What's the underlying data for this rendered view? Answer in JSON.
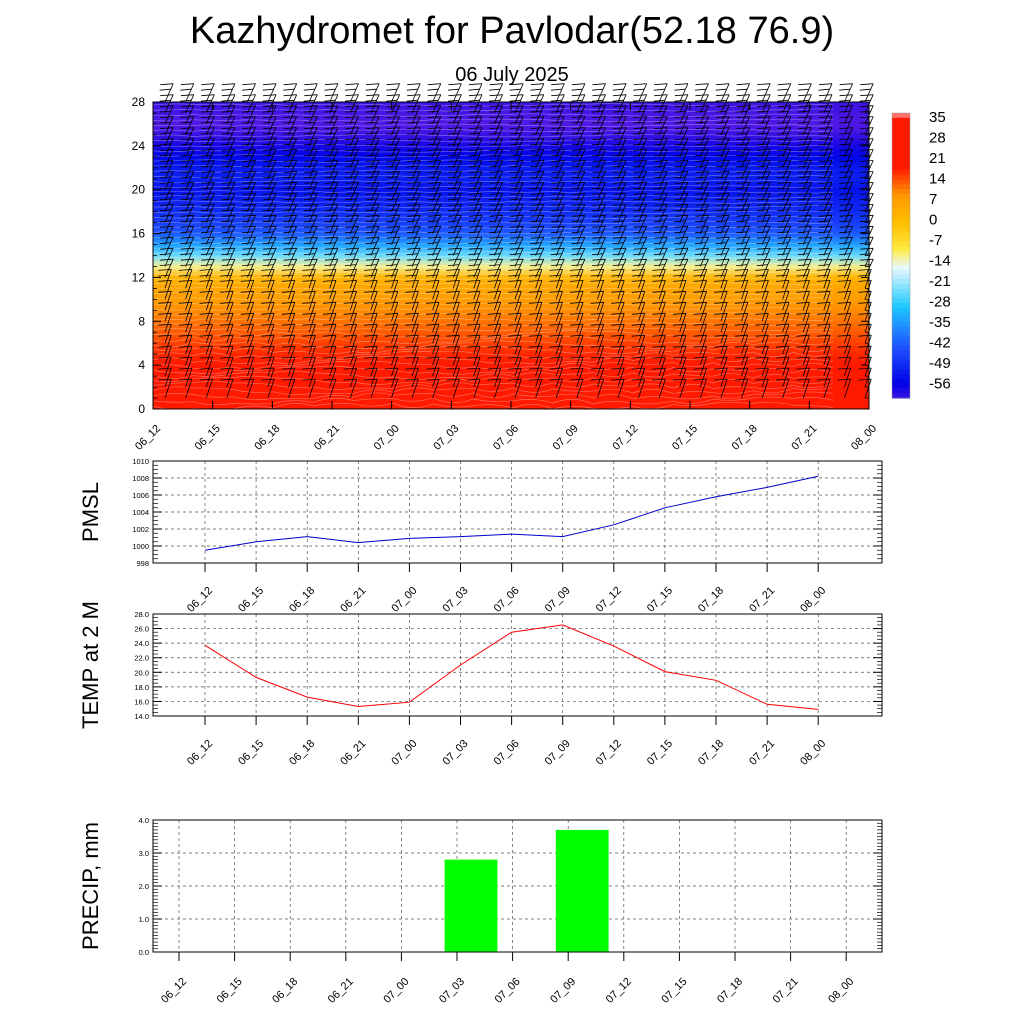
{
  "header": {
    "title": "Kazhydromet for Pavlodar(52.18 76.9)",
    "subtitle": "06 July 2025"
  },
  "chart_data": [
    {
      "type": "heatmap",
      "description_of_content": "temperature cross-section with wind barbs",
      "x_labels": [
        "06_12",
        "06_15",
        "06_18",
        "06_21",
        "07_00",
        "07_03",
        "07_06",
        "07_09",
        "07_12",
        "07_15",
        "07_18",
        "07_21",
        "08_00"
      ],
      "y_ticks": [
        0,
        4,
        8,
        12,
        16,
        20,
        24,
        28
      ],
      "ylim": [
        0,
        28
      ],
      "colorbar_labels": [
        "35",
        "28",
        "21",
        "14",
        "7",
        "0",
        "-7",
        "-14",
        "-21",
        "-28",
        "-35",
        "-42",
        "-49",
        "-56"
      ],
      "levels": [
        0,
        1,
        2,
        3,
        4,
        5,
        6,
        7,
        8,
        9,
        10,
        11,
        12,
        13,
        14,
        15,
        16,
        17,
        18,
        19,
        20,
        21,
        22,
        23,
        24,
        25,
        26,
        27,
        28
      ],
      "profile_temperature": [
        27,
        25,
        24,
        22,
        21,
        19,
        17,
        15,
        13,
        11,
        9,
        7,
        3,
        -12,
        -25,
        -35,
        -44,
        -48,
        -51,
        -53,
        -55,
        -53,
        -54,
        -57,
        -60,
        -63,
        -65,
        -64,
        -63
      ],
      "colors": {
        "violet": "#8a2be2",
        "blue": "#0000e6",
        "cyan": "#1ec8ff",
        "white": "#e8f8ff",
        "yellow": "#ffe840",
        "orange": "#ff9900",
        "red": "#ff1a00",
        "pink": "#ffb6c1"
      }
    },
    {
      "type": "line",
      "ylabel": "PMSL",
      "categories": [
        "06_12",
        "06_15",
        "06_18",
        "06_21",
        "07_00",
        "07_03",
        "07_06",
        "07_09",
        "07_12",
        "07_15",
        "07_18",
        "07_21",
        "08_00"
      ],
      "values": [
        999.5,
        1000.5,
        1001.1,
        1000.4,
        1000.9,
        1001.1,
        1001.4,
        1001.1,
        1002.5,
        1004.5,
        1005.8,
        1006.9,
        1008.2
      ],
      "ylim": [
        998,
        1010
      ],
      "y_ticks": [
        "998",
        "1000",
        "1002",
        "1004",
        "1006",
        "1008",
        "1010"
      ],
      "color": "#0000cc"
    },
    {
      "type": "line",
      "ylabel": "TEMP at 2 M",
      "categories": [
        "06_12",
        "06_15",
        "06_18",
        "06_21",
        "07_00",
        "07_03",
        "07_06",
        "07_09",
        "07_12",
        "07_15",
        "07_18",
        "07_21",
        "08_00"
      ],
      "values": [
        23.7,
        19.3,
        16.6,
        15.3,
        15.9,
        21.0,
        25.5,
        26.5,
        23.6,
        20.1,
        18.9,
        15.6,
        14.9
      ],
      "ylim": [
        14,
        28
      ],
      "y_ticks": [
        "14.0",
        "16.0",
        "18.0",
        "20.0",
        "22.0",
        "24.0",
        "26.0",
        "28.0"
      ],
      "color": "#ff0000"
    },
    {
      "type": "bar",
      "ylabel": "PRECIP, mm",
      "categories": [
        "06_12",
        "06_15",
        "06_18",
        "06_21",
        "07_00",
        "07_03",
        "07_06",
        "07_09",
        "07_12",
        "07_15",
        "07_18",
        "07_21",
        "08_00"
      ],
      "values": [
        0,
        0,
        0,
        0,
        0,
        2.8,
        0,
        3.7,
        0,
        0,
        0,
        0,
        0
      ],
      "ylim": [
        0,
        4
      ],
      "y_ticks": [
        "0.0",
        "1.0",
        "2.0",
        "3.0",
        "4.0"
      ],
      "color": "#00ff00"
    }
  ]
}
